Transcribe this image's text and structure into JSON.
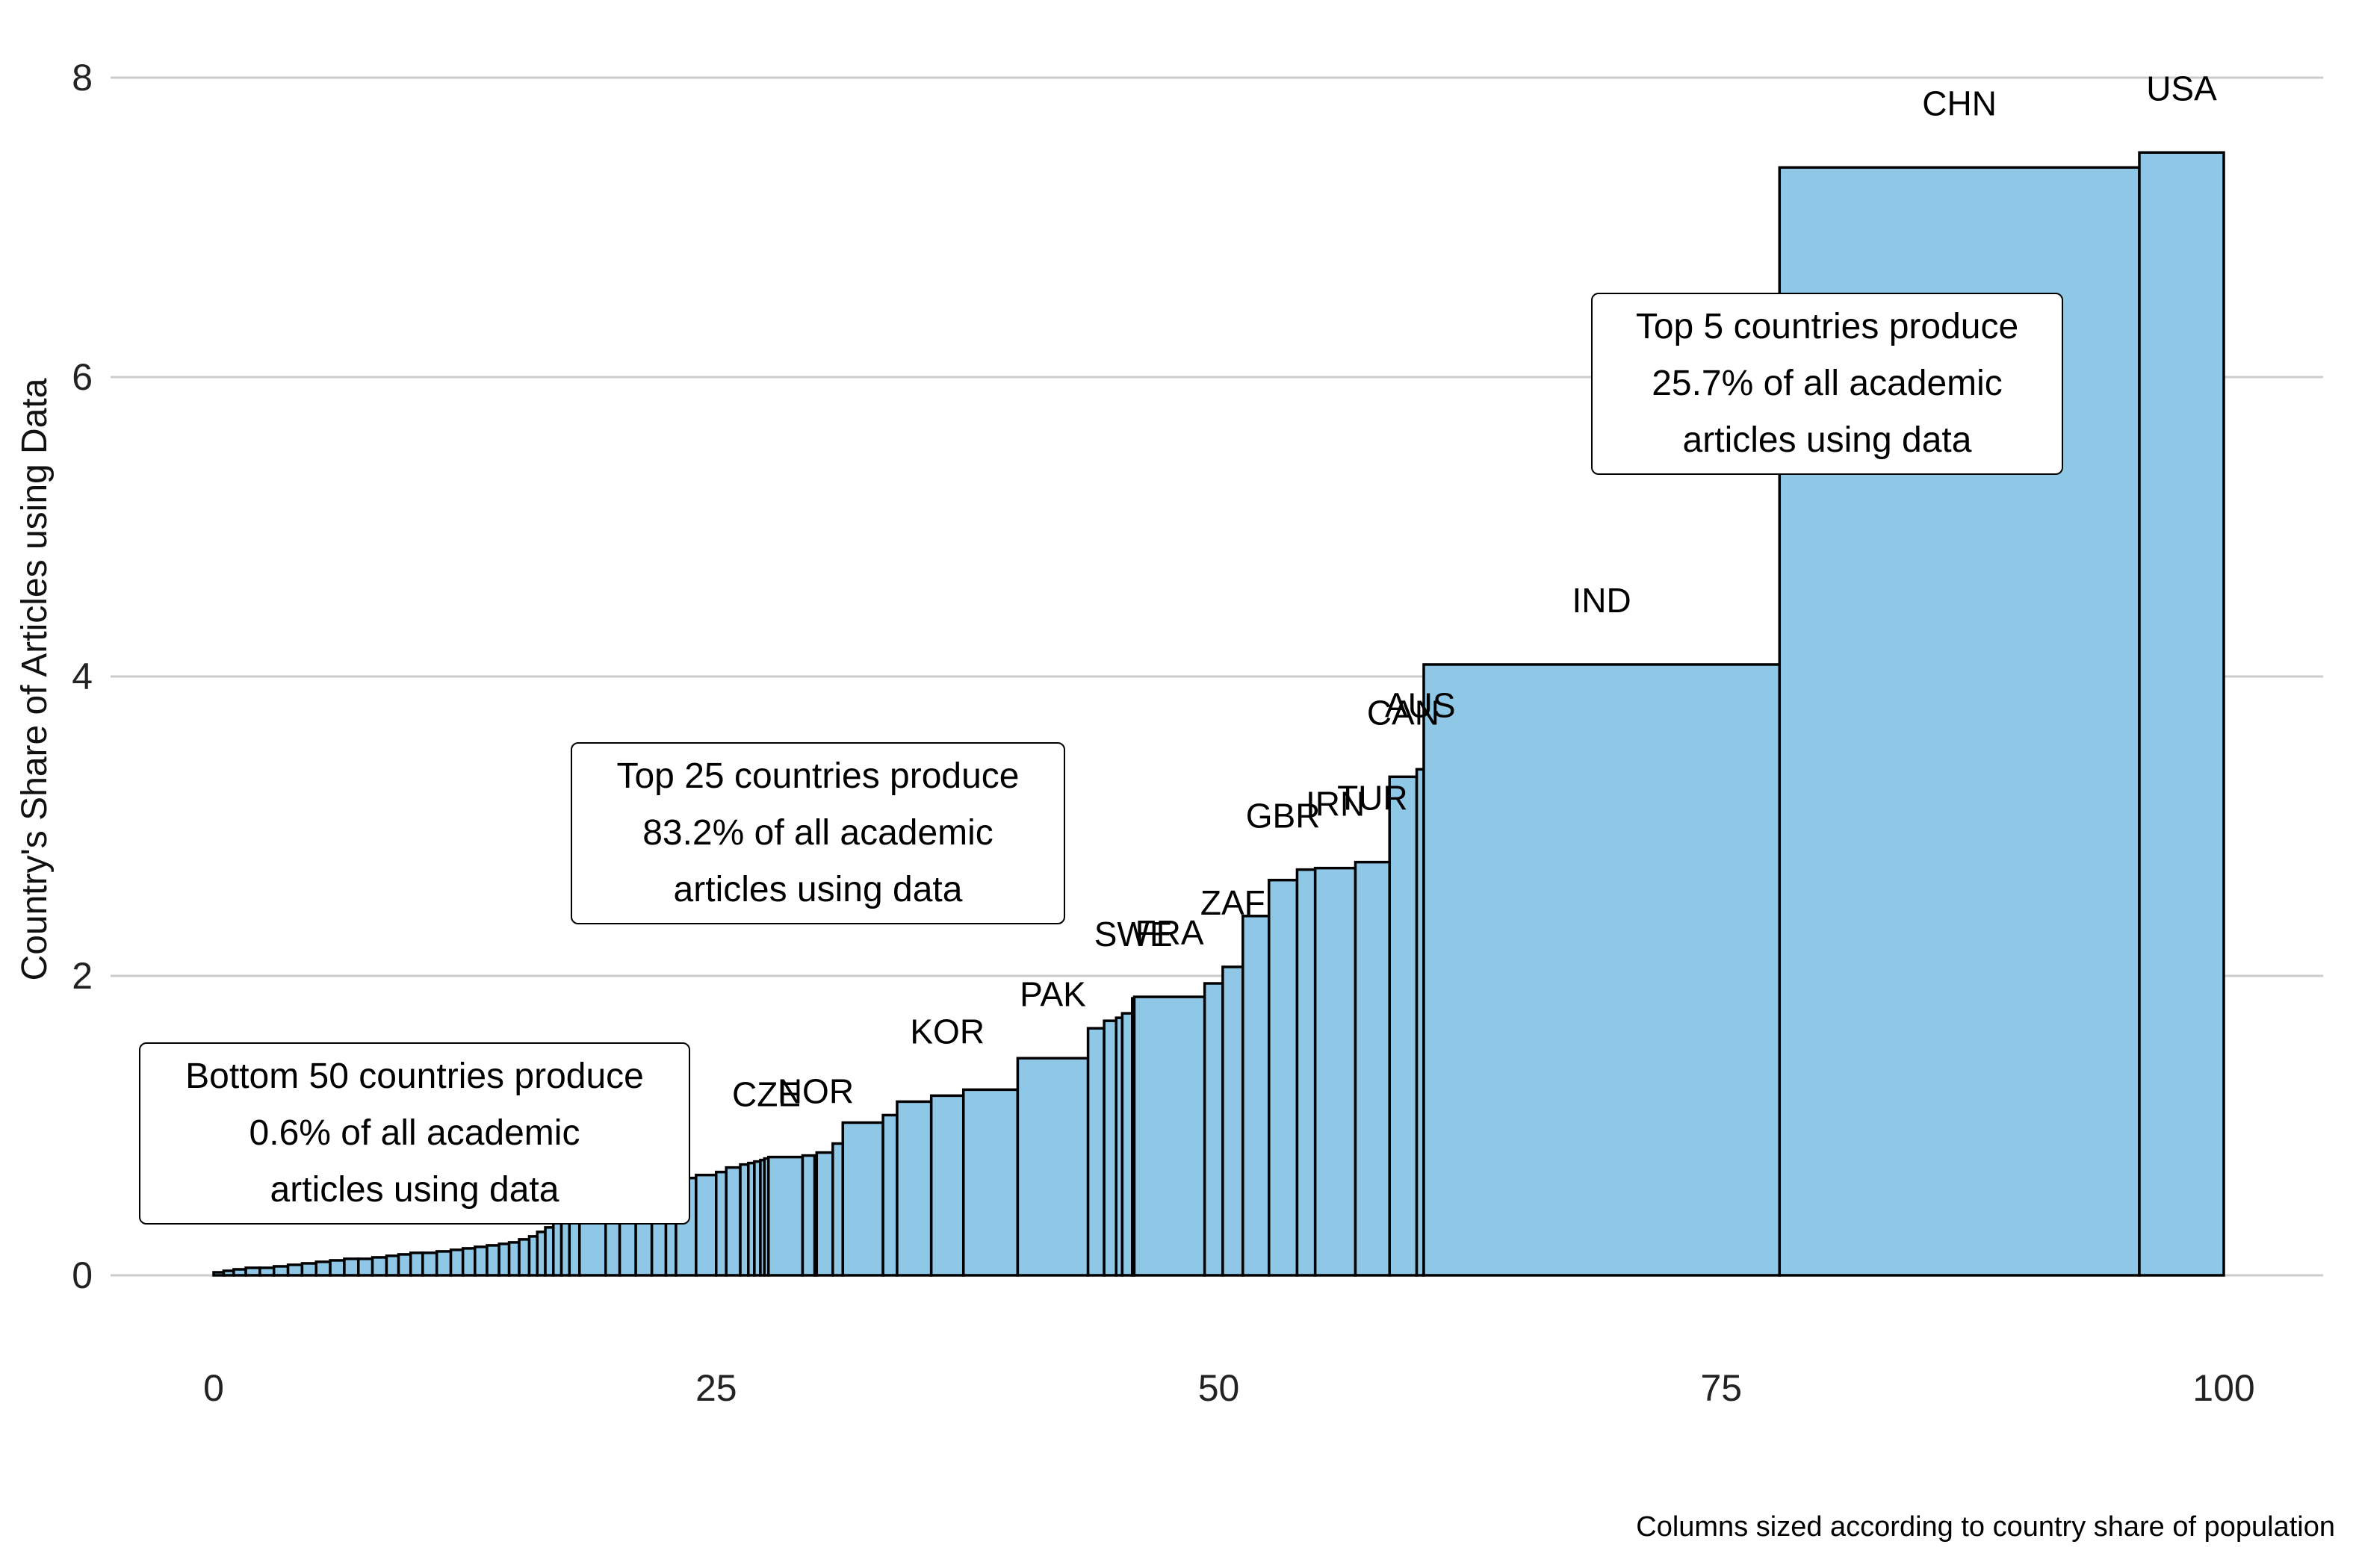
{
  "chart_data": {
    "type": "bar",
    "variant": "variable-width (marimekko) columns",
    "title": "",
    "xlabel": "",
    "ylabel": "Country's Share of Articles using Data",
    "caption": "Columns sized according to country share of population",
    "xlim": [
      0,
      100
    ],
    "ylim": [
      0,
      8
    ],
    "x_ticks": [
      "0",
      "25",
      "50",
      "75",
      "100"
    ],
    "y_ticks": [
      "0",
      "2",
      "4",
      "6",
      "8"
    ],
    "grid": "horizontal major gridlines",
    "colors": {
      "bar_fill": "#8fc8e6",
      "bar_stroke": "#000000",
      "grid": "#cccccc"
    },
    "labeled_countries": [
      {
        "label": "USA",
        "x_start": 95.8,
        "x_end": 100,
        "value": 7.5
      },
      {
        "label": "CHN",
        "x_start": 77.9,
        "x_end": 95.8,
        "value": 7.4
      },
      {
        "label": "IND",
        "x_start": 60.2,
        "x_end": 77.9,
        "value": 4.08
      },
      {
        "label": "AUS",
        "x_start": 59.85,
        "x_end": 60.2,
        "value": 3.38
      },
      {
        "label": "CAN",
        "x_start": 58.5,
        "x_end": 59.85,
        "value": 3.33
      },
      {
        "label": "TUR",
        "x_start": 56.8,
        "x_end": 58.5,
        "value": 2.76
      },
      {
        "label": "IRN",
        "x_start": 54.8,
        "x_end": 56.8,
        "value": 2.72
      },
      {
        "label": "GBR",
        "x_start": 52.5,
        "x_end": 53.9,
        "value": 2.64
      },
      {
        "label": "ZAF",
        "x_start": 50.2,
        "x_end": 51.2,
        "value": 2.06
      },
      {
        "label": "FRA",
        "x_start": 45.8,
        "x_end": 49.3,
        "value": 1.86
      },
      {
        "label": "SWE",
        "x_start": 45.7,
        "x_end": 45.8,
        "value": 1.85
      },
      {
        "label": "PAK",
        "x_start": 40.0,
        "x_end": 43.5,
        "value": 1.45
      },
      {
        "label": "KOR",
        "x_start": 35.7,
        "x_end": 37.3,
        "value": 1.2
      },
      {
        "label": "NOR",
        "x_start": 29.9,
        "x_end": 30.0,
        "value": 0.8
      },
      {
        "label": "CZE",
        "x_start": 27.4,
        "x_end": 27.6,
        "value": 0.78
      }
    ],
    "columns": [
      {
        "x_start": 0.0,
        "x_end": 0.5,
        "value": 0.02
      },
      {
        "x_start": 0.5,
        "x_end": 1.0,
        "value": 0.03
      },
      {
        "x_start": 1.0,
        "x_end": 1.6,
        "value": 0.04
      },
      {
        "x_start": 1.6,
        "x_end": 2.3,
        "value": 0.05
      },
      {
        "x_start": 2.3,
        "x_end": 3.0,
        "value": 0.05
      },
      {
        "x_start": 3.0,
        "x_end": 3.7,
        "value": 0.06
      },
      {
        "x_start": 3.7,
        "x_end": 4.4,
        "value": 0.07
      },
      {
        "x_start": 4.4,
        "x_end": 5.1,
        "value": 0.08
      },
      {
        "x_start": 5.1,
        "x_end": 5.8,
        "value": 0.09
      },
      {
        "x_start": 5.8,
        "x_end": 6.5,
        "value": 0.1
      },
      {
        "x_start": 6.5,
        "x_end": 7.2,
        "value": 0.11
      },
      {
        "x_start": 7.2,
        "x_end": 7.9,
        "value": 0.11
      },
      {
        "x_start": 7.9,
        "x_end": 8.6,
        "value": 0.12
      },
      {
        "x_start": 8.6,
        "x_end": 9.2,
        "value": 0.13
      },
      {
        "x_start": 9.2,
        "x_end": 9.8,
        "value": 0.14
      },
      {
        "x_start": 9.8,
        "x_end": 10.4,
        "value": 0.15
      },
      {
        "x_start": 10.4,
        "x_end": 11.1,
        "value": 0.15
      },
      {
        "x_start": 11.1,
        "x_end": 11.8,
        "value": 0.16
      },
      {
        "x_start": 11.8,
        "x_end": 12.4,
        "value": 0.17
      },
      {
        "x_start": 12.4,
        "x_end": 13.0,
        "value": 0.18
      },
      {
        "x_start": 13.0,
        "x_end": 13.6,
        "value": 0.19
      },
      {
        "x_start": 13.6,
        "x_end": 14.2,
        "value": 0.2
      },
      {
        "x_start": 14.2,
        "x_end": 14.7,
        "value": 0.21
      },
      {
        "x_start": 14.7,
        "x_end": 15.2,
        "value": 0.22
      },
      {
        "x_start": 15.2,
        "x_end": 15.7,
        "value": 0.24
      },
      {
        "x_start": 15.7,
        "x_end": 16.1,
        "value": 0.26
      },
      {
        "x_start": 16.1,
        "x_end": 16.5,
        "value": 0.29
      },
      {
        "x_start": 16.5,
        "x_end": 16.9,
        "value": 0.32
      },
      {
        "x_start": 16.9,
        "x_end": 17.3,
        "value": 0.35
      },
      {
        "x_start": 17.3,
        "x_end": 17.7,
        "value": 0.38
      },
      {
        "x_start": 17.7,
        "x_end": 18.2,
        "value": 0.4
      },
      {
        "x_start": 18.2,
        "x_end": 19.5,
        "value": 0.42
      },
      {
        "x_start": 19.5,
        "x_end": 20.2,
        "value": 0.45
      },
      {
        "x_start": 20.2,
        "x_end": 21.0,
        "value": 0.48
      },
      {
        "x_start": 21.0,
        "x_end": 21.8,
        "value": 0.5
      },
      {
        "x_start": 21.8,
        "x_end": 22.5,
        "value": 0.55
      },
      {
        "x_start": 22.5,
        "x_end": 23.0,
        "value": 0.6
      },
      {
        "x_start": 23.0,
        "x_end": 24.0,
        "value": 0.65
      },
      {
        "x_start": 24.0,
        "x_end": 25.0,
        "value": 0.67
      },
      {
        "x_start": 25.0,
        "x_end": 25.5,
        "value": 0.69
      },
      {
        "x_start": 25.5,
        "x_end": 26.2,
        "value": 0.72
      },
      {
        "x_start": 26.2,
        "x_end": 26.6,
        "value": 0.74
      },
      {
        "x_start": 26.6,
        "x_end": 26.9,
        "value": 0.75
      },
      {
        "x_start": 26.9,
        "x_end": 27.2,
        "value": 0.76
      },
      {
        "x_start": 27.2,
        "x_end": 27.4,
        "value": 0.77
      },
      {
        "x_start": 27.4,
        "x_end": 27.6,
        "value": 0.78
      },
      {
        "x_start": 27.6,
        "x_end": 29.3,
        "value": 0.79
      },
      {
        "x_start": 29.3,
        "x_end": 29.9,
        "value": 0.8
      },
      {
        "x_start": 29.9,
        "x_end": 30.0,
        "value": 0.8
      },
      {
        "x_start": 30.0,
        "x_end": 30.8,
        "value": 0.82
      },
      {
        "x_start": 30.8,
        "x_end": 31.3,
        "value": 0.88
      },
      {
        "x_start": 31.3,
        "x_end": 33.3,
        "value": 1.02
      },
      {
        "x_start": 33.3,
        "x_end": 34.0,
        "value": 1.07
      },
      {
        "x_start": 34.0,
        "x_end": 35.7,
        "value": 1.16
      },
      {
        "x_start": 35.7,
        "x_end": 37.3,
        "value": 1.2
      },
      {
        "x_start": 37.3,
        "x_end": 40.0,
        "value": 1.24
      },
      {
        "x_start": 40.0,
        "x_end": 43.5,
        "value": 1.45
      },
      {
        "x_start": 43.5,
        "x_end": 44.3,
        "value": 1.65
      },
      {
        "x_start": 44.3,
        "x_end": 44.9,
        "value": 1.7
      },
      {
        "x_start": 44.9,
        "x_end": 45.2,
        "value": 1.72
      },
      {
        "x_start": 45.2,
        "x_end": 45.7,
        "value": 1.75
      },
      {
        "x_start": 45.7,
        "x_end": 45.8,
        "value": 1.85
      },
      {
        "x_start": 45.8,
        "x_end": 49.3,
        "value": 1.86
      },
      {
        "x_start": 49.3,
        "x_end": 50.2,
        "value": 1.95
      },
      {
        "x_start": 50.2,
        "x_end": 51.2,
        "value": 2.06
      },
      {
        "x_start": 51.2,
        "x_end": 52.5,
        "value": 2.4
      },
      {
        "x_start": 52.5,
        "x_end": 53.9,
        "value": 2.64
      },
      {
        "x_start": 53.9,
        "x_end": 54.8,
        "value": 2.71
      },
      {
        "x_start": 54.8,
        "x_end": 56.8,
        "value": 2.72
      },
      {
        "x_start": 56.8,
        "x_end": 58.5,
        "value": 2.76
      },
      {
        "x_start": 58.5,
        "x_end": 59.85,
        "value": 3.33
      },
      {
        "x_start": 59.85,
        "x_end": 60.2,
        "value": 3.38
      },
      {
        "x_start": 60.2,
        "x_end": 77.9,
        "value": 4.08
      },
      {
        "x_start": 77.9,
        "x_end": 95.8,
        "value": 7.4
      },
      {
        "x_start": 95.8,
        "x_end": 100.0,
        "value": 7.5
      }
    ],
    "annotations": [
      {
        "lines": [
          "Top 5 countries produce",
          "25.7% of all academic",
          "articles using data"
        ]
      },
      {
        "lines": [
          "Top 25 countries produce",
          "83.2% of all academic",
          "articles using data"
        ]
      },
      {
        "lines": [
          "Bottom 50 countries produce",
          "0.6% of all academic",
          "articles using data"
        ]
      }
    ]
  }
}
